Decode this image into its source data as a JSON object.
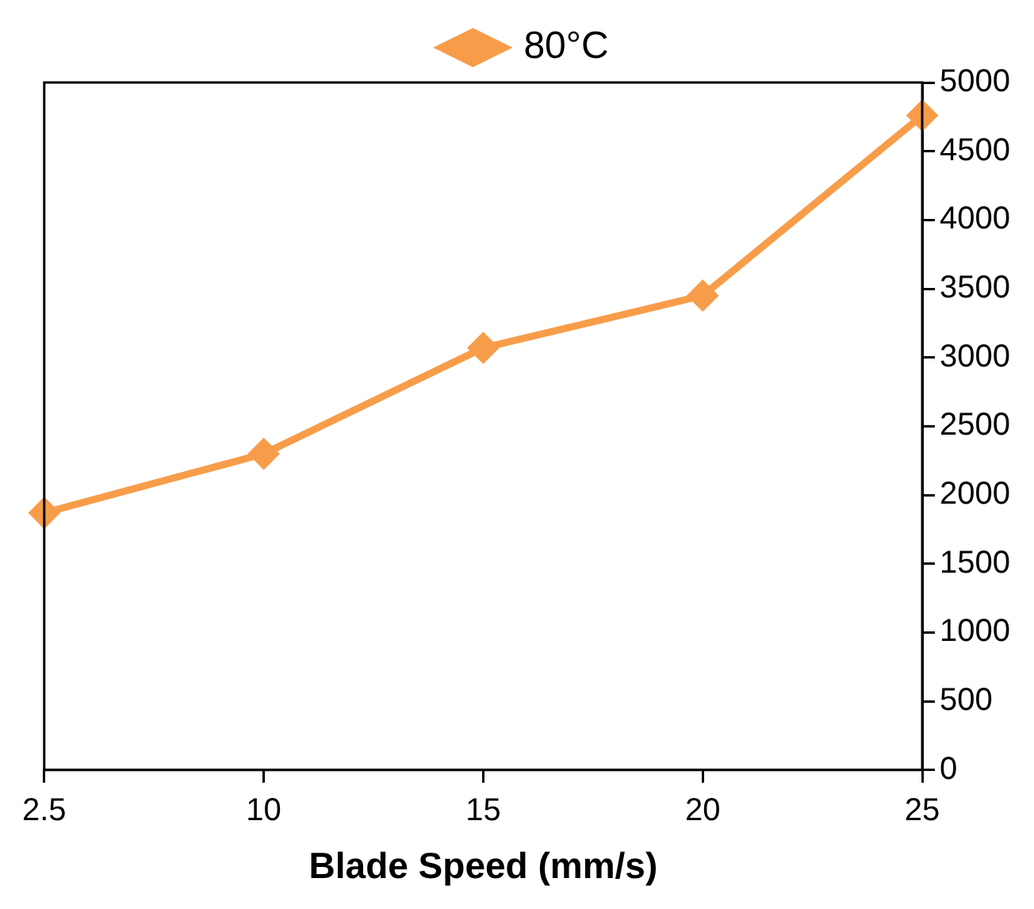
{
  "chart_data": {
    "type": "line",
    "xlabel": "Blade Speed (mm/s)",
    "categories": [
      "2.5",
      "10",
      "15",
      "20",
      "25"
    ],
    "series": [
      {
        "name": "80°C",
        "color": "#f79d4a",
        "values": [
          1870,
          2300,
          3070,
          3450,
          4760
        ]
      }
    ],
    "ylim": [
      0,
      5000
    ],
    "yticks": [
      0,
      500,
      1000,
      1500,
      2000,
      2500,
      3000,
      3500,
      4000,
      4500,
      5000
    ],
    "grid": false,
    "legend": "top",
    "marker": "diamond",
    "line_style": "solid"
  }
}
